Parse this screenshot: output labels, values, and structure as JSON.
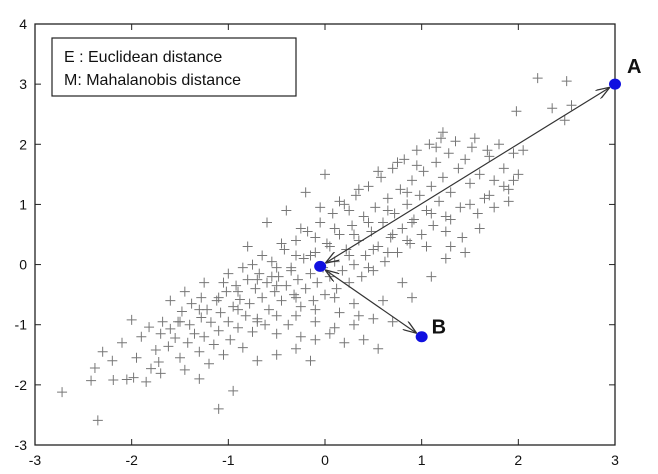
{
  "chart_data": {
    "type": "scatter",
    "xlim": [
      -3,
      3
    ],
    "ylim": [
      -3,
      4
    ],
    "xticks": [
      -3,
      -2,
      -1,
      0,
      1,
      2,
      3
    ],
    "yticks": [
      -3,
      -2,
      -1,
      0,
      1,
      2,
      3,
      4
    ],
    "xtick_labels": [
      "-3",
      "-2",
      "-1",
      "0",
      "1",
      "2",
      "3"
    ],
    "ytick_labels": [
      "-3",
      "-2",
      "-1",
      "0",
      "1",
      "2",
      "3",
      "4"
    ],
    "grid": false,
    "legend": {
      "placement": "top-left",
      "entries": [
        "E : Euclidean distance",
        "M: Mahalanobis distance"
      ]
    },
    "marker": "plus",
    "marker_color": "#777777",
    "highlight_color": "#1010e0",
    "center": {
      "x": -0.05,
      "y": -0.03
    },
    "labeled_points": [
      {
        "label": "A",
        "x": 3.0,
        "y": 3.0
      },
      {
        "label": "B",
        "x": 1.0,
        "y": -1.2
      }
    ],
    "arrows": [
      {
        "from": "center",
        "to": "A"
      },
      {
        "from": "center",
        "to": "B"
      }
    ],
    "points": [
      [
        -2.72,
        -2.12
      ],
      [
        -2.35,
        -2.59
      ],
      [
        -2.42,
        -1.93
      ],
      [
        -2.38,
        -1.72
      ],
      [
        -2.19,
        -1.92
      ],
      [
        -2.05,
        -1.91
      ],
      [
        -1.98,
        -1.88
      ],
      [
        -1.85,
        -1.95
      ],
      [
        -1.8,
        -1.73
      ],
      [
        -2.0,
        -0.92
      ],
      [
        -1.82,
        -1.04
      ],
      [
        -1.75,
        -1.42
      ],
      [
        -1.72,
        -1.62
      ],
      [
        -1.7,
        -1.81
      ],
      [
        -1.62,
        -1.36
      ],
      [
        -1.6,
        -1.07
      ],
      [
        -1.55,
        -1.22
      ],
      [
        -1.52,
        -0.95
      ],
      [
        -1.5,
        -1.55
      ],
      [
        -1.45,
        -1.75
      ],
      [
        -1.42,
        -1.3
      ],
      [
        -1.4,
        -1.0
      ],
      [
        -1.38,
        -0.65
      ],
      [
        -1.35,
        -1.15
      ],
      [
        -1.3,
        -1.45
      ],
      [
        -1.28,
        -0.88
      ],
      [
        -1.25,
        -1.2
      ],
      [
        -1.22,
        -0.75
      ],
      [
        -1.2,
        -1.65
      ],
      [
        -1.18,
        -0.96
      ],
      [
        -1.15,
        -1.33
      ],
      [
        -1.12,
        -0.6
      ],
      [
        -1.1,
        -1.1
      ],
      [
        -1.08,
        -0.8
      ],
      [
        -1.05,
        -1.5
      ],
      [
        -1.02,
        -0.45
      ],
      [
        -1.0,
        -0.95
      ],
      [
        -0.98,
        -1.25
      ],
      [
        -0.95,
        -0.7
      ],
      [
        -0.92,
        -0.35
      ],
      [
        -0.9,
        -1.05
      ],
      [
        -0.88,
        -0.58
      ],
      [
        -0.85,
        -1.38
      ],
      [
        -0.82,
        -0.85
      ],
      [
        -0.8,
        -0.25
      ],
      [
        -0.78,
        -0.65
      ],
      [
        -0.75,
        -1.12
      ],
      [
        -0.72,
        -0.4
      ],
      [
        -0.7,
        -0.9
      ],
      [
        -0.68,
        -0.15
      ],
      [
        -0.65,
        -0.55
      ],
      [
        -0.62,
        -1.0
      ],
      [
        -0.6,
        -0.3
      ],
      [
        -0.58,
        -0.75
      ],
      [
        -0.55,
        0.05
      ],
      [
        -0.52,
        -0.45
      ],
      [
        -0.5,
        -0.85
      ],
      [
        -0.48,
        -0.2
      ],
      [
        -0.45,
        -0.6
      ],
      [
        -0.42,
        0.25
      ],
      [
        -0.4,
        -0.35
      ],
      [
        -0.38,
        -1.0
      ],
      [
        -0.35,
        -0.05
      ],
      [
        -0.32,
        -0.5
      ],
      [
        -0.3,
        0.4
      ],
      [
        -0.28,
        -0.25
      ],
      [
        -0.25,
        -0.7
      ],
      [
        -0.22,
        0.1
      ],
      [
        -0.2,
        -0.4
      ],
      [
        -0.18,
        0.55
      ],
      [
        -0.15,
        -0.15
      ],
      [
        -0.12,
        -0.6
      ],
      [
        -0.1,
        0.2
      ],
      [
        -0.08,
        -0.3
      ],
      [
        -0.05,
        0.7
      ],
      [
        -0.02,
        -0.05
      ],
      [
        0.0,
        -0.5
      ],
      [
        0.02,
        0.35
      ],
      [
        0.05,
        -0.2
      ],
      [
        0.08,
        0.85
      ],
      [
        0.1,
        0.05
      ],
      [
        0.12,
        -0.4
      ],
      [
        0.15,
        0.5
      ],
      [
        0.18,
        -0.1
      ],
      [
        0.2,
        1.0
      ],
      [
        0.22,
        0.25
      ],
      [
        0.25,
        -0.3
      ],
      [
        0.28,
        0.65
      ],
      [
        0.3,
        0.0
      ],
      [
        0.32,
        1.15
      ],
      [
        0.35,
        0.4
      ],
      [
        0.38,
        -0.2
      ],
      [
        0.4,
        0.8
      ],
      [
        0.42,
        0.15
      ],
      [
        0.45,
        1.3
      ],
      [
        0.48,
        0.55
      ],
      [
        0.5,
        -0.1
      ],
      [
        0.52,
        0.95
      ],
      [
        0.55,
        0.3
      ],
      [
        0.58,
        1.45
      ],
      [
        0.6,
        0.7
      ],
      [
        0.62,
        0.05
      ],
      [
        0.65,
        1.1
      ],
      [
        0.68,
        0.45
      ],
      [
        0.7,
        1.6
      ],
      [
        0.72,
        0.85
      ],
      [
        0.75,
        0.2
      ],
      [
        0.78,
        1.25
      ],
      [
        0.8,
        0.6
      ],
      [
        0.82,
        1.75
      ],
      [
        0.85,
        1.0
      ],
      [
        0.88,
        0.35
      ],
      [
        0.9,
        1.4
      ],
      [
        0.92,
        0.75
      ],
      [
        0.95,
        1.9
      ],
      [
        0.98,
        1.15
      ],
      [
        1.0,
        0.5
      ],
      [
        1.02,
        1.55
      ],
      [
        1.05,
        0.9
      ],
      [
        1.08,
        2.0
      ],
      [
        1.1,
        1.3
      ],
      [
        1.12,
        0.65
      ],
      [
        1.15,
        1.7
      ],
      [
        1.18,
        1.05
      ],
      [
        1.2,
        2.1
      ],
      [
        1.22,
        1.45
      ],
      [
        1.25,
        0.8
      ],
      [
        1.28,
        1.85
      ],
      [
        1.3,
        1.2
      ],
      [
        1.35,
        2.05
      ],
      [
        1.38,
        1.6
      ],
      [
        1.4,
        0.95
      ],
      [
        1.45,
        1.75
      ],
      [
        1.5,
        1.35
      ],
      [
        1.55,
        2.1
      ],
      [
        1.6,
        1.5
      ],
      [
        1.65,
        1.1
      ],
      [
        1.7,
        1.8
      ],
      [
        1.75,
        1.4
      ],
      [
        1.8,
        2.0
      ],
      [
        1.85,
        1.6
      ],
      [
        1.9,
        1.25
      ],
      [
        1.95,
        1.85
      ],
      [
        2.0,
        1.5
      ],
      [
        1.58,
        0.85
      ],
      [
        1.42,
        0.45
      ],
      [
        1.3,
        0.3
      ],
      [
        -0.6,
        0.7
      ],
      [
        -0.4,
        0.9
      ],
      [
        -0.2,
        1.2
      ],
      [
        0.0,
        1.5
      ],
      [
        -0.8,
        0.3
      ],
      [
        0.6,
        -0.6
      ],
      [
        0.8,
        -0.3
      ],
      [
        0.5,
        -0.9
      ],
      [
        0.3,
        -1.0
      ],
      [
        0.2,
        -1.3
      ],
      [
        0.55,
        -1.4
      ],
      [
        -0.25,
        -1.2
      ],
      [
        -0.1,
        -0.95
      ],
      [
        0.15,
        -0.8
      ],
      [
        -1.1,
        -2.4
      ],
      [
        -0.95,
        -2.1
      ],
      [
        -1.3,
        -1.9
      ],
      [
        -0.7,
        -1.6
      ],
      [
        -0.5,
        -1.5
      ],
      [
        -0.3,
        -1.4
      ],
      [
        -0.15,
        -1.6
      ],
      [
        0.05,
        -1.15
      ],
      [
        0.4,
        -1.25
      ],
      [
        0.7,
        -0.95
      ],
      [
        0.9,
        -0.55
      ],
      [
        1.1,
        -0.2
      ],
      [
        1.25,
        0.1
      ],
      [
        1.45,
        0.2
      ],
      [
        2.2,
        3.1
      ],
      [
        2.5,
        3.05
      ],
      [
        2.35,
        2.6
      ],
      [
        2.55,
        2.65
      ],
      [
        2.48,
        2.4
      ],
      [
        1.98,
        2.55
      ],
      [
        2.05,
        1.9
      ],
      [
        -2.1,
        -1.3
      ],
      [
        -1.9,
        -1.2
      ],
      [
        -1.68,
        -0.95
      ],
      [
        -1.48,
        -0.78
      ],
      [
        -1.28,
        -0.55
      ],
      [
        -1.05,
        -0.3
      ],
      [
        -0.85,
        -0.05
      ],
      [
        -0.65,
        0.15
      ],
      [
        -0.45,
        0.35
      ],
      [
        -0.25,
        0.6
      ],
      [
        -0.05,
        0.95
      ],
      [
        0.15,
        1.05
      ],
      [
        0.35,
        1.25
      ],
      [
        0.55,
        1.55
      ],
      [
        0.75,
        1.7
      ],
      [
        0.95,
        1.65
      ],
      [
        1.15,
        1.95
      ],
      [
        0.25,
        0.9
      ],
      [
        0.45,
        0.7
      ],
      [
        0.65,
        0.9
      ],
      [
        0.85,
        1.2
      ],
      [
        -0.5,
        -0.05
      ],
      [
        -0.3,
        0.15
      ],
      [
        -0.1,
        0.45
      ],
      [
        0.1,
        0.6
      ],
      [
        0.3,
        0.5
      ],
      [
        0.5,
        0.25
      ],
      [
        0.7,
        0.5
      ],
      [
        0.9,
        0.7
      ],
      [
        1.1,
        0.85
      ],
      [
        1.3,
        0.75
      ],
      [
        1.5,
        1.0
      ],
      [
        1.7,
        1.15
      ],
      [
        1.9,
        1.05
      ],
      [
        -1.6,
        -0.6
      ],
      [
        -1.45,
        -0.45
      ],
      [
        -1.25,
        -0.3
      ],
      [
        -1.0,
        -0.15
      ],
      [
        -0.75,
        0.0
      ],
      [
        -0.55,
        -0.2
      ],
      [
        -0.35,
        -0.1
      ],
      [
        -0.15,
        0.15
      ],
      [
        0.05,
        0.3
      ],
      [
        0.25,
        0.15
      ],
      [
        0.45,
        -0.05
      ],
      [
        0.65,
        0.2
      ],
      [
        0.85,
        0.4
      ],
      [
        1.05,
        0.3
      ],
      [
        1.25,
        0.55
      ],
      [
        -0.9,
        -0.45
      ],
      [
        -0.7,
        -0.25
      ],
      [
        -0.5,
        -0.35
      ],
      [
        -0.3,
        -0.55
      ],
      [
        -0.1,
        -0.75
      ],
      [
        0.1,
        -0.55
      ],
      [
        0.3,
        -0.65
      ],
      [
        -1.7,
        -1.15
      ],
      [
        -1.5,
        -0.95
      ],
      [
        -1.3,
        -0.75
      ],
      [
        -1.1,
        -0.55
      ],
      [
        -0.9,
        -0.75
      ],
      [
        -0.7,
        -0.95
      ],
      [
        -0.5,
        -1.15
      ],
      [
        -0.3,
        -0.85
      ],
      [
        -0.1,
        -1.25
      ],
      [
        0.1,
        -1.05
      ],
      [
        0.35,
        -0.85
      ],
      [
        -2.3,
        -1.45
      ],
      [
        -2.2,
        -1.6
      ],
      [
        -1.95,
        -1.55
      ],
      [
        1.6,
        0.6
      ],
      [
        1.75,
        0.95
      ],
      [
        1.85,
        1.3
      ],
      [
        1.95,
        1.4
      ],
      [
        1.68,
        1.9
      ],
      [
        1.52,
        1.95
      ],
      [
        1.22,
        2.2
      ]
    ]
  }
}
